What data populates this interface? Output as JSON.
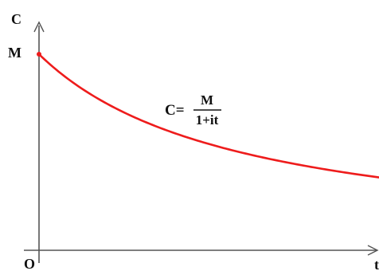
{
  "chart_data": {
    "type": "line",
    "title": "",
    "xlabel": "t",
    "ylabel": "C",
    "origin_label": "O",
    "y0_label": "M",
    "formula": {
      "lhs": "C=",
      "numerator": "M",
      "denominator": "1+it"
    },
    "curve": {
      "function": "C = M / (1 + i t)",
      "color": "#ee1c1c",
      "M": 1,
      "i": 0.65,
      "t_range": [
        0,
        2.6
      ]
    },
    "axes_color": "#555555",
    "grid": false,
    "ylim": [
      0,
      1.2
    ]
  }
}
